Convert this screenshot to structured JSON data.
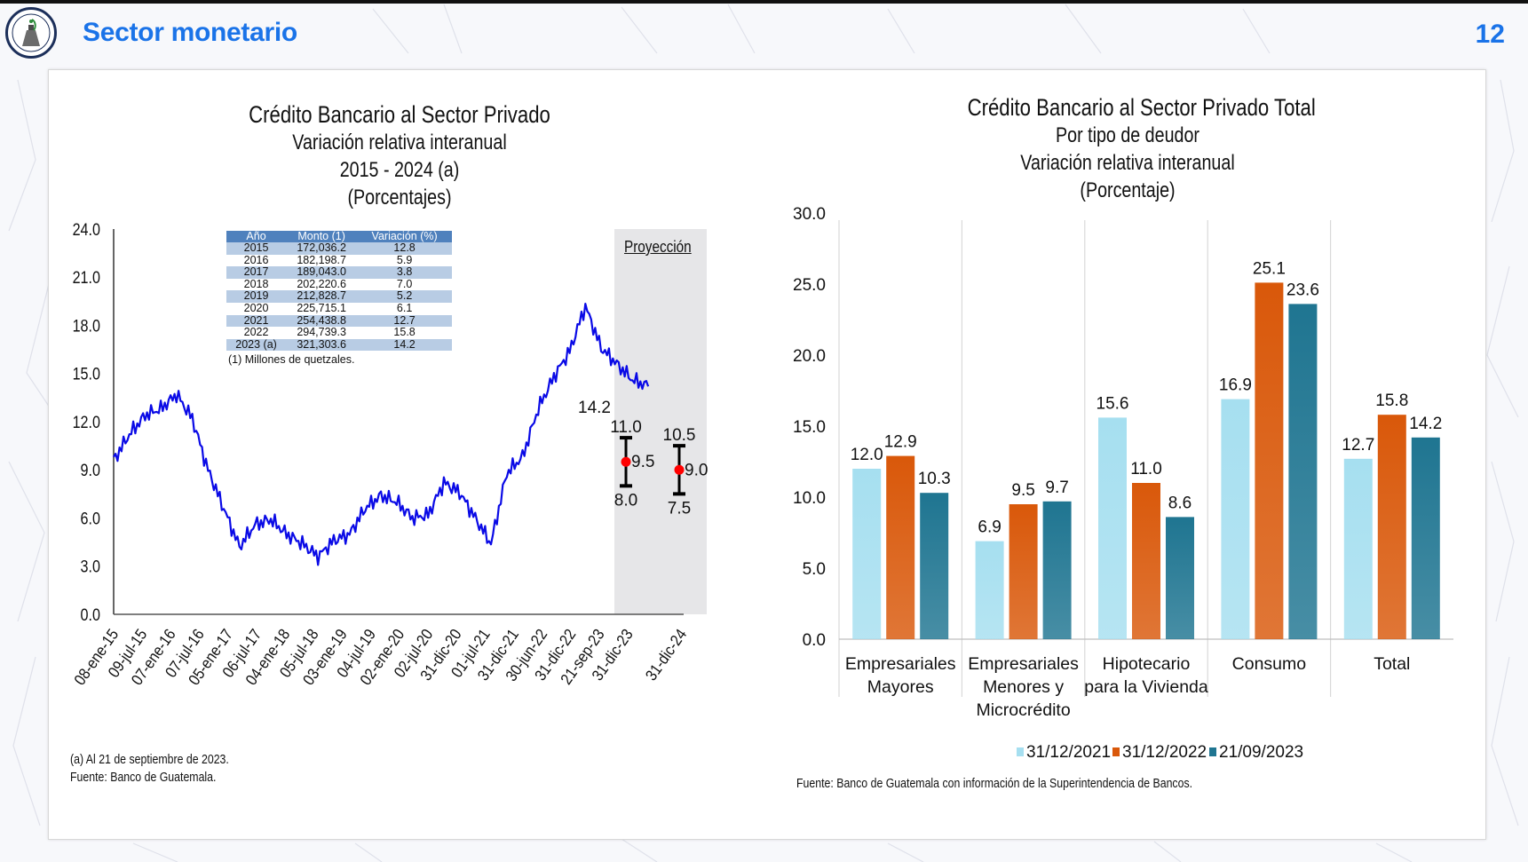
{
  "header": {
    "title": "Sector monetario",
    "page_number": "12",
    "logo_label": "Banco de Guatemala"
  },
  "colors": {
    "title_blue": "#1a73e8",
    "line_blue": "#0a0ae6",
    "bar_2021": "#a6dff0",
    "bar_2022": "#d9580a",
    "bar_2023": "#1f7591",
    "table_header": "#4f81bd",
    "table_band": "#b8cce4",
    "projection_bg": "#e6e6e8"
  },
  "left_chart": {
    "titles": [
      "Crédito Bancario al Sector Privado",
      "Variación relativa interanual",
      "2015 - 2024 (a)",
      "(Porcentajes)"
    ],
    "table": {
      "headers": [
        "Año",
        "Monto (1)",
        "Variación (%)"
      ],
      "rows": [
        [
          "2015",
          "172,036.2",
          "12.8"
        ],
        [
          "2016",
          "182,198.7",
          "5.9"
        ],
        [
          "2017",
          "189,043.0",
          "3.8"
        ],
        [
          "2018",
          "202,220.6",
          "7.0"
        ],
        [
          "2019",
          "212,828.7",
          "5.2"
        ],
        [
          "2020",
          "225,715.1",
          "6.1"
        ],
        [
          "2021",
          "254,438.8",
          "12.7"
        ],
        [
          "2022",
          "294,739.3",
          "15.8"
        ],
        [
          "2023 (a)",
          "321,303.6",
          "14.2"
        ]
      ],
      "note": "(1) Millones de quetzales."
    },
    "projection_label": "Proyección",
    "footnotes": [
      "(a) Al 21 de septiembre de 2023.",
      "Fuente: Banco de Guatemala."
    ]
  },
  "right_chart": {
    "titles": [
      "Crédito Bancario al Sector Privado Total",
      "Por tipo de deudor",
      "Variación relativa interanual",
      "(Porcentaje)"
    ],
    "source": "Fuente: Banco de Guatemala con información de la Superintendencia de Bancos."
  },
  "chart_data": [
    {
      "type": "line",
      "title": "Crédito Bancario al Sector Privado - Variación relativa interanual 2015 - 2024 (a) (Porcentajes)",
      "ylim": [
        0,
        24
      ],
      "yticks": [
        "0.0",
        "3.0",
        "6.0",
        "9.0",
        "12.0",
        "15.0",
        "18.0",
        "21.0",
        "24.0"
      ],
      "xtick_labels": [
        "08-ene-15",
        "09-jul-15",
        "07-ene-16",
        "07-jul-16",
        "05-ene-17",
        "06-jul-17",
        "04-ene-18",
        "05-jul-18",
        "03-ene-19",
        "04-jul-19",
        "02-ene-20",
        "02-jul-20",
        "31-dic-20",
        "01-jul-21",
        "31-dic-21",
        "30-jun-22",
        "31-dic-22",
        "21-sep-23",
        "31-dic-23",
        "31-dic-24"
      ],
      "series": [
        {
          "name": "Variación interanual",
          "x_index": [
            0,
            0.5,
            1,
            1.5,
            2,
            2.5,
            3,
            3.5,
            4,
            4.5,
            5,
            5.5,
            6,
            6.5,
            7,
            7.5,
            8,
            8.5,
            9,
            9.5,
            10,
            10.5,
            11,
            11.5,
            12,
            12.5,
            13,
            13.5,
            14,
            14.5,
            15,
            15.5,
            16,
            16.5,
            17
          ],
          "values": [
            9.6,
            11.2,
            12.4,
            12.8,
            13.7,
            12.2,
            9.0,
            6.6,
            4.2,
            5.6,
            5.9,
            5.0,
            4.4,
            3.6,
            4.6,
            5.0,
            6.6,
            7.4,
            7.0,
            6.0,
            6.2,
            8.2,
            7.6,
            6.0,
            4.4,
            8.8,
            9.8,
            12.8,
            14.8,
            16.4,
            19.2,
            16.6,
            15.6,
            14.6,
            14.2
          ]
        }
      ],
      "annotations": [
        {
          "label": "14.2",
          "value": 14.2
        }
      ],
      "projections": [
        {
          "x_label": "31-dic-23",
          "central": 9.5,
          "low": 8.0,
          "high": 11.0
        },
        {
          "x_label": "31-dic-24",
          "central": 9.0,
          "low": 7.5,
          "high": 10.5
        }
      ],
      "projection_shading_label": "Proyección"
    },
    {
      "type": "bar",
      "title": "Crédito Bancario al Sector Privado Total - Por tipo de deudor - Variación relativa interanual (Porcentaje)",
      "ylim": [
        0,
        30
      ],
      "yticks": [
        "0.0",
        "5.0",
        "10.0",
        "15.0",
        "20.0",
        "25.0",
        "30.0"
      ],
      "categories": [
        [
          "Empresariales",
          "Mayores"
        ],
        [
          "Empresariales",
          "Menores y",
          "Microcrédito"
        ],
        [
          "Hipotecario",
          "para la Vivienda"
        ],
        [
          "Consumo"
        ],
        [
          "Total"
        ]
      ],
      "series": [
        {
          "name": "31/12/2021",
          "values": [
            12.0,
            6.9,
            15.6,
            16.9,
            12.7
          ]
        },
        {
          "name": "31/12/2022",
          "values": [
            12.9,
            9.5,
            11.0,
            25.1,
            15.8
          ]
        },
        {
          "name": "21/09/2023",
          "values": [
            10.3,
            9.7,
            8.6,
            23.6,
            14.2
          ]
        }
      ],
      "legend_position": "bottom"
    }
  ]
}
